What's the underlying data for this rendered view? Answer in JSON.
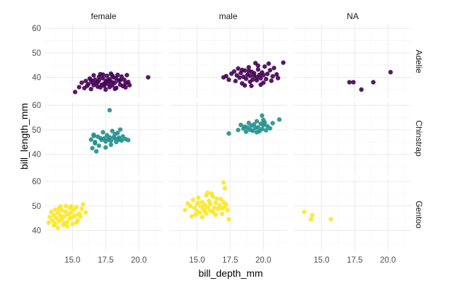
{
  "chart_data": {
    "type": "scatter",
    "facet": "grid",
    "xlabel": "bill_depth_mm",
    "ylabel": "bill_length_mm",
    "xlim": [
      12.9,
      21.8
    ],
    "ylim": [
      31.5,
      61.5
    ],
    "x_ticks": [
      15.0,
      17.5,
      20.0
    ],
    "x_tick_labels": [
      "15.0",
      "17.5",
      "20.0"
    ],
    "x_minor_ticks": [
      13.75,
      16.25,
      18.75,
      21.25
    ],
    "y_ticks": [
      40,
      50,
      60
    ],
    "y_tick_labels": [
      "40",
      "50",
      "60"
    ],
    "y_minor_ticks": [
      35,
      45,
      55
    ],
    "columns": [
      "female",
      "male",
      "NA"
    ],
    "rows": [
      "Adelie",
      "Chinstrap",
      "Gentoo"
    ],
    "grid": true,
    "legend": "none",
    "colors": {
      "Adelie": "#440154",
      "Chinstrap": "#21908d",
      "Gentoo": "#fde725"
    },
    "panels": [
      {
        "column": "female",
        "row": "Adelie",
        "points": [
          [
            15.2,
            34.0
          ],
          [
            15.5,
            36.0
          ],
          [
            15.7,
            37.8
          ],
          [
            15.9,
            35.6
          ],
          [
            16.0,
            38.5
          ],
          [
            16.1,
            36.5
          ],
          [
            16.2,
            37.2
          ],
          [
            16.3,
            39.5
          ],
          [
            16.4,
            35.2
          ],
          [
            16.5,
            38.0
          ],
          [
            16.6,
            36.8
          ],
          [
            16.7,
            39.0
          ],
          [
            16.8,
            37.5
          ],
          [
            16.9,
            36.2
          ],
          [
            17.0,
            38.8
          ],
          [
            17.0,
            40.2
          ],
          [
            17.1,
            35.9
          ],
          [
            17.2,
            37.0
          ],
          [
            17.3,
            39.6
          ],
          [
            17.3,
            41.1
          ],
          [
            17.4,
            36.5
          ],
          [
            17.5,
            38.2
          ],
          [
            17.5,
            35.0
          ],
          [
            17.6,
            40.6
          ],
          [
            17.7,
            37.3
          ],
          [
            17.8,
            39.2
          ],
          [
            17.8,
            36.0
          ],
          [
            17.9,
            41.5
          ],
          [
            18.0,
            38.0
          ],
          [
            18.0,
            36.7
          ],
          [
            18.1,
            40.0
          ],
          [
            18.2,
            37.8
          ],
          [
            18.3,
            39.5
          ],
          [
            18.3,
            35.7
          ],
          [
            18.4,
            41.0
          ],
          [
            18.5,
            38.6
          ],
          [
            18.6,
            37.0
          ],
          [
            18.7,
            40.3
          ],
          [
            18.8,
            36.4
          ],
          [
            18.9,
            39.0
          ],
          [
            19.0,
            37.6
          ],
          [
            19.1,
            40.9
          ],
          [
            19.2,
            38.1
          ],
          [
            19.3,
            36.8
          ],
          [
            16.6,
            40.8
          ],
          [
            17.1,
            41.3
          ],
          [
            18.2,
            35.3
          ],
          [
            17.6,
            38.7
          ],
          [
            16.9,
            38.1
          ],
          [
            18.6,
            38.9
          ],
          [
            20.7,
            40.0
          ],
          [
            17.4,
            37.4
          ],
          [
            18.0,
            40.7
          ],
          [
            16.4,
            38.8
          ],
          [
            19.0,
            35.9
          ],
          [
            17.8,
            38.4
          ]
        ]
      },
      {
        "column": "female",
        "row": "Chinstrap",
        "points": [
          [
            16.6,
            48.0
          ],
          [
            16.4,
            46.0
          ],
          [
            16.7,
            44.5
          ],
          [
            16.9,
            47.2
          ],
          [
            16.5,
            42.5
          ],
          [
            17.0,
            43.5
          ],
          [
            16.8,
            41.2
          ],
          [
            17.2,
            45.9
          ],
          [
            17.4,
            46.5
          ],
          [
            17.3,
            49.0
          ],
          [
            17.5,
            45.2
          ],
          [
            17.6,
            47.8
          ],
          [
            17.7,
            46.0
          ],
          [
            17.8,
            58.0
          ],
          [
            17.9,
            45.5
          ],
          [
            18.0,
            49.5
          ],
          [
            18.1,
            47.0
          ],
          [
            18.2,
            46.4
          ],
          [
            18.3,
            45.0
          ],
          [
            18.4,
            48.7
          ],
          [
            18.5,
            46.8
          ],
          [
            18.6,
            50.1
          ],
          [
            18.7,
            45.6
          ],
          [
            18.8,
            47.3
          ],
          [
            19.0,
            46.2
          ],
          [
            19.2,
            45.8
          ],
          [
            16.7,
            45.0
          ],
          [
            17.1,
            46.6
          ],
          [
            17.9,
            43.9
          ],
          [
            18.5,
            46.0
          ],
          [
            16.6,
            47.5
          ],
          [
            17.5,
            42.8
          ],
          [
            18.2,
            48.2
          ],
          [
            17.8,
            46.9
          ]
        ]
      },
      {
        "column": "male",
        "row": "Adelie",
        "points": [
          [
            17.2,
            40.5
          ],
          [
            17.4,
            39.0
          ],
          [
            17.6,
            41.5
          ],
          [
            17.8,
            42.4
          ],
          [
            17.9,
            38.5
          ],
          [
            18.0,
            40.8
          ],
          [
            18.1,
            43.6
          ],
          [
            18.2,
            39.9
          ],
          [
            18.3,
            41.8
          ],
          [
            18.4,
            37.5
          ],
          [
            18.5,
            40.2
          ],
          [
            18.6,
            42.8
          ],
          [
            18.7,
            39.4
          ],
          [
            18.8,
            41.1
          ],
          [
            18.9,
            44.1
          ],
          [
            19.0,
            38.2
          ],
          [
            19.0,
            40.6
          ],
          [
            19.1,
            42.3
          ],
          [
            19.2,
            39.1
          ],
          [
            19.3,
            41.7
          ],
          [
            19.4,
            45.8
          ],
          [
            19.5,
            38.8
          ],
          [
            19.5,
            40.0
          ],
          [
            19.6,
            43.2
          ],
          [
            19.7,
            41.0
          ],
          [
            19.8,
            39.6
          ],
          [
            19.9,
            42.0
          ],
          [
            20.0,
            37.8
          ],
          [
            20.0,
            40.9
          ],
          [
            20.1,
            44.4
          ],
          [
            20.2,
            39.3
          ],
          [
            20.3,
            41.4
          ],
          [
            20.5,
            42.9
          ],
          [
            20.6,
            38.6
          ],
          [
            20.7,
            40.4
          ],
          [
            20.8,
            43.8
          ],
          [
            21.0,
            41.2
          ],
          [
            21.1,
            39.7
          ],
          [
            21.5,
            46.0
          ],
          [
            18.6,
            36.7
          ],
          [
            19.1,
            36.5
          ],
          [
            19.8,
            37.0
          ],
          [
            18.4,
            43.0
          ],
          [
            19.6,
            44.8
          ],
          [
            17.0,
            40.0
          ],
          [
            20.4,
            45.6
          ],
          [
            19.3,
            40.7
          ],
          [
            18.9,
            42.6
          ]
        ]
      },
      {
        "column": "male",
        "row": "Chinstrap",
        "points": [
          [
            17.4,
            48.5
          ],
          [
            18.1,
            49.9
          ],
          [
            18.3,
            52.0
          ],
          [
            18.5,
            50.5
          ],
          [
            18.6,
            51.3
          ],
          [
            18.7,
            49.2
          ],
          [
            18.9,
            52.8
          ],
          [
            19.0,
            50.0
          ],
          [
            19.1,
            51.7
          ],
          [
            19.2,
            49.6
          ],
          [
            19.3,
            52.2
          ],
          [
            19.4,
            50.8
          ],
          [
            19.5,
            53.5
          ],
          [
            19.6,
            51.0
          ],
          [
            19.7,
            49.4
          ],
          [
            19.8,
            52.5
          ],
          [
            19.9,
            50.3
          ],
          [
            20.0,
            51.9
          ],
          [
            20.1,
            53.0
          ],
          [
            20.2,
            49.8
          ],
          [
            20.3,
            51.5
          ],
          [
            20.5,
            50.6
          ],
          [
            20.7,
            52.7
          ],
          [
            21.2,
            54.2
          ],
          [
            19.9,
            55.8
          ],
          [
            18.8,
            50.9
          ],
          [
            19.5,
            49.0
          ],
          [
            20.0,
            54.0
          ]
        ]
      },
      {
        "column": "male",
        "row": "Gentoo",
        "points": [
          [
            14.1,
            48.4
          ],
          [
            14.3,
            51.1
          ],
          [
            14.5,
            50.0
          ],
          [
            14.7,
            52.5
          ],
          [
            14.8,
            49.2
          ],
          [
            14.9,
            46.5
          ],
          [
            15.0,
            50.8
          ],
          [
            15.0,
            48.0
          ],
          [
            15.1,
            53.4
          ],
          [
            15.2,
            47.3
          ],
          [
            15.3,
            49.8
          ],
          [
            15.4,
            51.6
          ],
          [
            15.5,
            48.6
          ],
          [
            15.6,
            50.4
          ],
          [
            15.7,
            54.3
          ],
          [
            15.7,
            46.9
          ],
          [
            15.8,
            49.5
          ],
          [
            15.9,
            52.1
          ],
          [
            16.0,
            48.1
          ],
          [
            16.0,
            50.9
          ],
          [
            16.1,
            55.1
          ],
          [
            16.2,
            47.6
          ],
          [
            16.3,
            49.3
          ],
          [
            16.4,
            51.3
          ],
          [
            16.5,
            53.0
          ],
          [
            16.6,
            48.8
          ],
          [
            16.7,
            50.3
          ],
          [
            16.8,
            52.8
          ],
          [
            16.9,
            49.1
          ],
          [
            17.0,
            59.6
          ],
          [
            17.0,
            51.5
          ],
          [
            17.1,
            57.3
          ],
          [
            17.2,
            50.7
          ],
          [
            17.3,
            48.3
          ],
          [
            17.4,
            44.6
          ],
          [
            15.4,
            45.5
          ],
          [
            16.4,
            46.4
          ],
          [
            15.8,
            55.5
          ],
          [
            14.6,
            45.8
          ],
          [
            17.1,
            49.7
          ],
          [
            15.1,
            51.4
          ],
          [
            16.9,
            46.8
          ],
          [
            15.6,
            47.8
          ],
          [
            16.2,
            53.9
          ]
        ]
      },
      {
        "column": "female",
        "row": "Gentoo",
        "points": [
          [
            13.2,
            43.2
          ],
          [
            13.3,
            45.5
          ],
          [
            13.4,
            47.6
          ],
          [
            13.5,
            44.0
          ],
          [
            13.6,
            46.2
          ],
          [
            13.7,
            48.5
          ],
          [
            13.7,
            42.8
          ],
          [
            13.8,
            45.0
          ],
          [
            13.9,
            47.2
          ],
          [
            14.0,
            43.9
          ],
          [
            14.0,
            49.0
          ],
          [
            14.1,
            46.0
          ],
          [
            14.2,
            44.6
          ],
          [
            14.2,
            48.2
          ],
          [
            14.3,
            42.3
          ],
          [
            14.4,
            45.8
          ],
          [
            14.5,
            47.8
          ],
          [
            14.5,
            50.0
          ],
          [
            14.6,
            43.5
          ],
          [
            14.7,
            46.6
          ],
          [
            14.8,
            49.2
          ],
          [
            14.8,
            44.9
          ],
          [
            14.9,
            47.3
          ],
          [
            15.0,
            45.4
          ],
          [
            15.0,
            42.7
          ],
          [
            15.1,
            48.6
          ],
          [
            15.2,
            46.1
          ],
          [
            15.3,
            49.6
          ],
          [
            15.4,
            44.1
          ],
          [
            15.5,
            47.0
          ],
          [
            15.6,
            45.7
          ],
          [
            15.7,
            48.9
          ],
          [
            15.8,
            50.7
          ],
          [
            16.0,
            47.4
          ],
          [
            13.9,
            41.1
          ],
          [
            14.6,
            41.7
          ],
          [
            14.1,
            49.8
          ],
          [
            15.3,
            43.3
          ],
          [
            13.6,
            42.1
          ],
          [
            14.4,
            43.0
          ],
          [
            15.5,
            46.5
          ],
          [
            14.9,
            49.9
          ]
        ]
      },
      {
        "column": "NA",
        "row": "Adelie",
        "points": [
          [
            17.1,
            38.0
          ],
          [
            17.4,
            38.0
          ],
          [
            18.0,
            35.0
          ],
          [
            18.9,
            38.0
          ],
          [
            20.2,
            42.1
          ]
        ]
      },
      {
        "column": "NA",
        "row": "Chinstrap",
        "points": []
      },
      {
        "column": "NA",
        "row": "Gentoo",
        "points": [
          [
            13.7,
            47.6
          ],
          [
            14.2,
            44.6
          ],
          [
            14.3,
            46.3
          ],
          [
            15.7,
            44.6
          ]
        ]
      }
    ]
  }
}
